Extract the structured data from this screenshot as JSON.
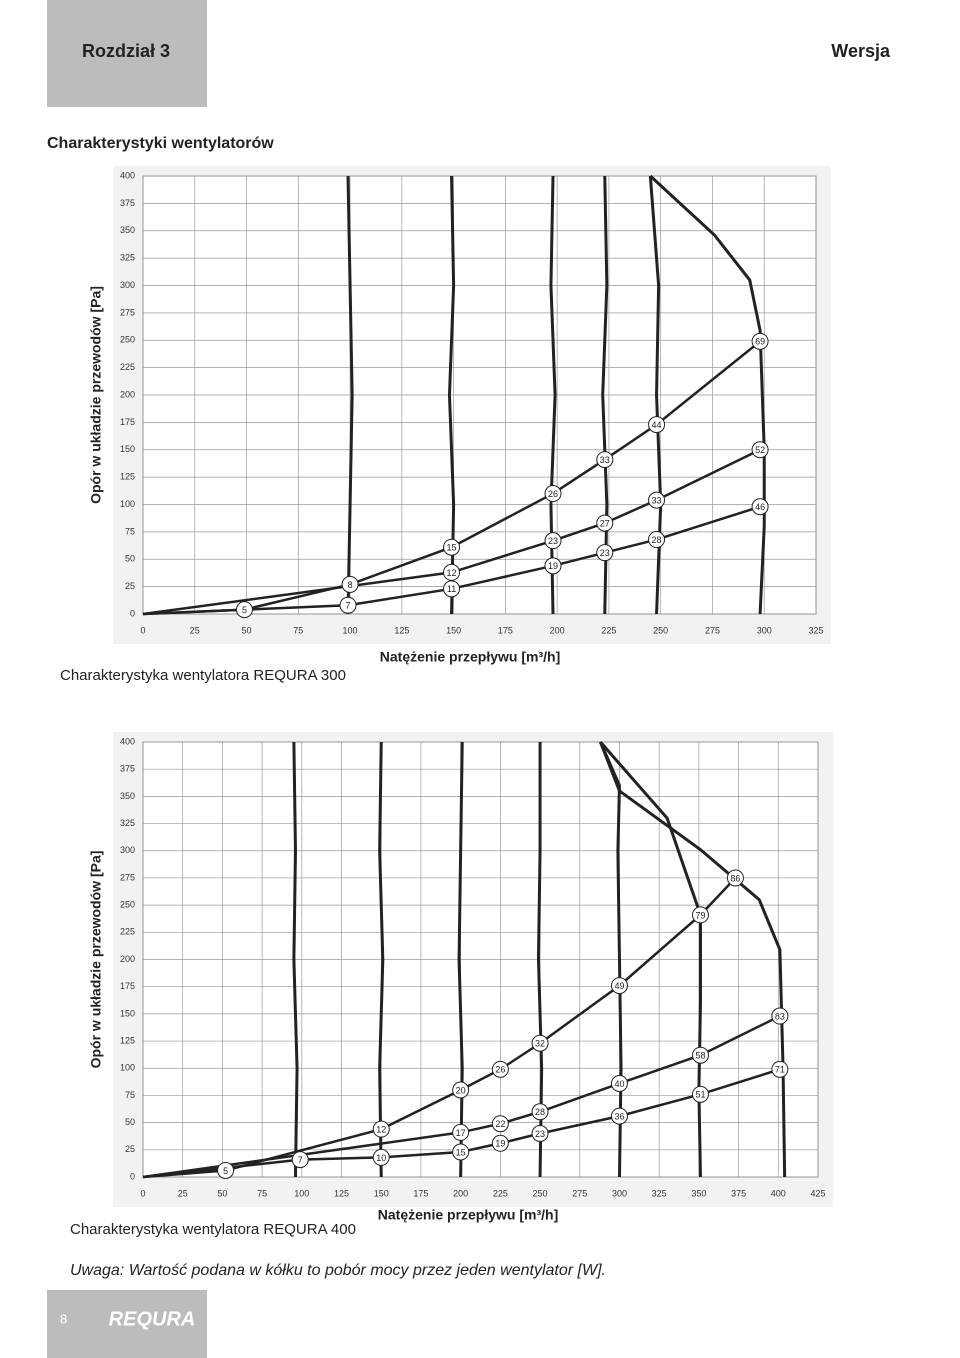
{
  "header": {
    "chapter": "Rozdział 3",
    "version": "Wersja"
  },
  "section_title": "Charakterystyki wentylatorów",
  "chart_data": [
    {
      "type": "line",
      "title": "Charakterystyka wentylatora REQURA 300",
      "xlabel": "Natężenie przepływu [m³/h]",
      "ylabel": "Opór w układzie przewodów [Pa]",
      "xlim": [
        0,
        325
      ],
      "ylim": [
        0,
        400
      ],
      "xticks": [
        0,
        25,
        50,
        75,
        100,
        125,
        150,
        175,
        200,
        225,
        250,
        275,
        300,
        325
      ],
      "yticks": [
        0,
        25,
        50,
        75,
        100,
        125,
        150,
        175,
        200,
        225,
        250,
        275,
        300,
        325,
        350,
        375,
        400
      ],
      "grid": true,
      "color": "#222222",
      "series": [
        {
          "x": [
            49,
            100,
            149,
            198,
            223,
            248,
            298
          ],
          "values": [
            4,
            27,
            61,
            110,
            141,
            173,
            249
          ],
          "power": [
            5,
            8,
            15,
            26,
            33,
            44,
            69
          ]
        },
        {
          "x": [
            149,
            198,
            223,
            248,
            298
          ],
          "values": [
            38,
            67,
            83,
            104,
            150
          ],
          "power": [
            12,
            23,
            27,
            33,
            52
          ]
        },
        {
          "x": [
            99,
            149,
            198,
            223,
            248,
            298
          ],
          "values": [
            8,
            23,
            44,
            56,
            68,
            98
          ],
          "power": [
            7,
            11,
            19,
            23,
            28,
            46
          ]
        }
      ],
      "fan_curves": [
        {
          "x": [
            99,
            100,
            101,
            100,
            99
          ],
          "y": [
            0,
            100,
            200,
            300,
            400
          ]
        },
        {
          "x": [
            149,
            150,
            148,
            150,
            149
          ],
          "y": [
            0,
            100,
            200,
            300,
            400
          ]
        },
        {
          "x": [
            198,
            197,
            199,
            197,
            198
          ],
          "y": [
            0,
            100,
            200,
            300,
            400
          ]
        },
        {
          "x": [
            223,
            224,
            222,
            224,
            223
          ],
          "y": [
            0,
            100,
            200,
            300,
            400
          ]
        },
        {
          "x": [
            248,
            250,
            248,
            249,
            245
          ],
          "y": [
            0,
            100,
            200,
            300,
            400
          ]
        },
        {
          "x": [
            298,
            300,
            300,
            298,
            293,
            276,
            245
          ],
          "y": [
            0,
            80,
            150,
            259,
            305,
            346,
            400
          ]
        }
      ]
    },
    {
      "type": "line",
      "title": "Charakterystyka wentylatora REQURA 400",
      "xlabel": "Natężenie przepływu [m³/h]",
      "ylabel": "Opór w układzie przewodów [Pa]",
      "xlim": [
        0,
        425
      ],
      "ylim": [
        0,
        400
      ],
      "xticks": [
        0,
        25,
        50,
        75,
        100,
        125,
        150,
        175,
        200,
        225,
        250,
        275,
        300,
        325,
        350,
        375,
        400,
        425
      ],
      "yticks": [
        0,
        25,
        50,
        75,
        100,
        125,
        150,
        175,
        200,
        225,
        250,
        275,
        300,
        325,
        350,
        375,
        400
      ],
      "grid": true,
      "color": "#222222",
      "series": [
        {
          "x": [
            52,
            150,
            200,
            225,
            250,
            300,
            351,
            373
          ],
          "values": [
            6,
            44,
            80,
            99,
            123,
            176,
            241,
            275
          ],
          "power": [
            5,
            12,
            20,
            26,
            32,
            49,
            79,
            86
          ]
        },
        {
          "x": [
            200,
            225,
            250,
            300,
            351,
            401
          ],
          "values": [
            41,
            49,
            60,
            86,
            112,
            148
          ],
          "power": [
            17,
            22,
            28,
            40,
            58,
            83
          ]
        },
        {
          "x": [
            99,
            150,
            200,
            225,
            250,
            300,
            351,
            401
          ],
          "values": [
            16,
            18,
            23,
            31,
            40,
            56,
            76,
            99
          ],
          "power": [
            7,
            10,
            15,
            19,
            23,
            36,
            51,
            71
          ]
        }
      ],
      "fan_curves": [
        {
          "x": [
            96,
            97,
            95,
            96,
            95
          ],
          "y": [
            0,
            100,
            200,
            300,
            400
          ]
        },
        {
          "x": [
            150,
            149,
            151,
            149,
            150
          ],
          "y": [
            0,
            100,
            200,
            300,
            400
          ]
        },
        {
          "x": [
            200,
            201,
            199,
            200,
            201
          ],
          "y": [
            0,
            100,
            200,
            300,
            400
          ]
        },
        {
          "x": [
            250,
            251,
            249,
            250,
            250
          ],
          "y": [
            0,
            100,
            200,
            300,
            400
          ]
        },
        {
          "x": [
            300,
            301,
            300,
            299,
            300,
            288
          ],
          "y": [
            0,
            100,
            200,
            300,
            360,
            400
          ]
        },
        {
          "x": [
            351,
            350,
            351,
            351,
            330,
            288
          ],
          "y": [
            0,
            80,
            160,
            241,
            330,
            400
          ]
        },
        {
          "x": [
            404,
            403,
            401,
            388,
            351,
            300,
            288
          ],
          "y": [
            0,
            100,
            209,
            255,
            301,
            355,
            400
          ]
        }
      ]
    }
  ],
  "note": "Uwaga: Wartość podana w kółku to pobór mocy przez jeden wentylator [W].",
  "footer": {
    "page": "8",
    "logo": "REQURA"
  }
}
